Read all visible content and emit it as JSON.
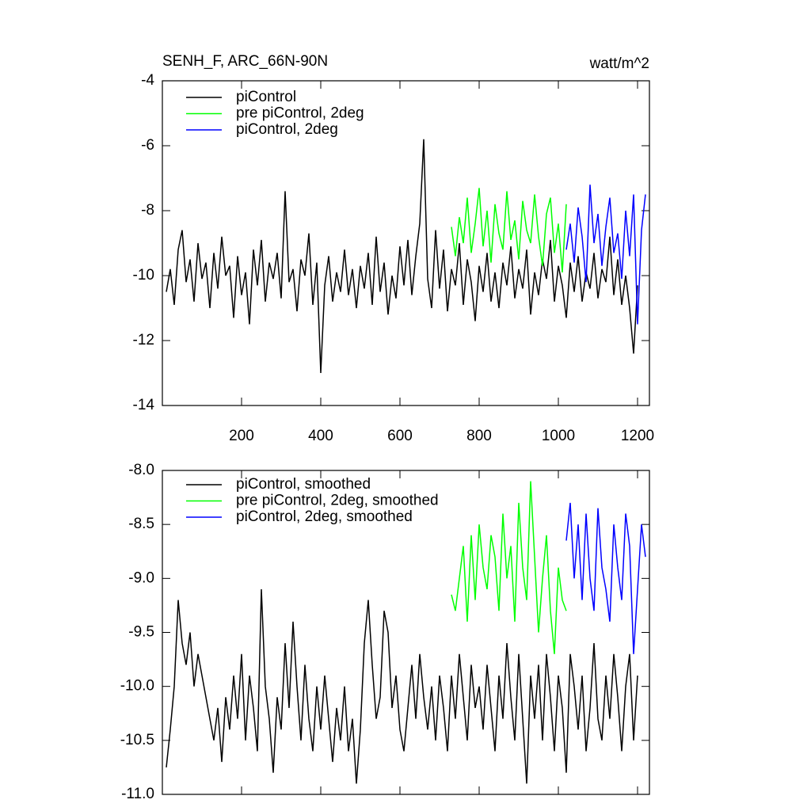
{
  "chart_data": [
    {
      "type": "line",
      "title": "SENH_F, ARC_66N-90N",
      "subtitle": "watt/m^2",
      "xlim": [
        0,
        1230
      ],
      "xticks": [
        200,
        400,
        600,
        800,
        1000,
        1200
      ],
      "ylim": [
        -14,
        -4
      ],
      "yticks": [
        -14,
        -12,
        -10,
        -8,
        -6,
        -4
      ],
      "legend": "top-left",
      "series": [
        {
          "name": "piControl",
          "color": "#000000",
          "x": [
            10,
            20,
            30,
            40,
            50,
            60,
            70,
            80,
            90,
            100,
            110,
            120,
            130,
            140,
            150,
            160,
            170,
            180,
            190,
            200,
            210,
            220,
            230,
            240,
            250,
            260,
            270,
            280,
            290,
            300,
            310,
            320,
            330,
            340,
            350,
            360,
            370,
            380,
            390,
            400,
            410,
            420,
            430,
            440,
            450,
            460,
            470,
            480,
            490,
            500,
            510,
            520,
            530,
            540,
            550,
            560,
            570,
            580,
            590,
            600,
            610,
            620,
            630,
            640,
            650,
            660,
            670,
            680,
            690,
            700,
            710,
            720,
            730,
            740,
            750,
            760,
            770,
            780,
            790,
            800,
            810,
            820,
            830,
            840,
            850,
            860,
            870,
            880,
            890,
            900,
            910,
            920,
            930,
            940,
            950,
            960,
            970,
            980,
            990,
            1000,
            1010,
            1020,
            1030,
            1040,
            1050,
            1060,
            1070,
            1080,
            1090,
            1100,
            1110,
            1120,
            1130,
            1140,
            1150,
            1160,
            1170,
            1180,
            1190,
            1200
          ],
          "values": [
            -10.5,
            -9.8,
            -10.9,
            -9.2,
            -8.6,
            -10.2,
            -9.5,
            -10.8,
            -9.0,
            -10.1,
            -9.6,
            -11.0,
            -9.3,
            -10.4,
            -8.8,
            -10.0,
            -9.7,
            -11.3,
            -9.4,
            -10.6,
            -9.9,
            -11.5,
            -9.2,
            -10.3,
            -8.9,
            -10.8,
            -9.6,
            -10.1,
            -9.3,
            -10.7,
            -7.4,
            -10.2,
            -9.8,
            -11.1,
            -9.5,
            -10.0,
            -8.7,
            -10.9,
            -9.6,
            -13.0,
            -10.3,
            -9.4,
            -10.8,
            -9.9,
            -10.5,
            -9.2,
            -10.6,
            -9.8,
            -11.0,
            -9.7,
            -10.4,
            -9.3,
            -10.9,
            -8.8,
            -10.5,
            -9.6,
            -11.2,
            -10.0,
            -10.7,
            -9.1,
            -10.3,
            -8.9,
            -10.6,
            -9.4,
            -8.4,
            -5.8,
            -10.1,
            -11.0,
            -8.6,
            -10.4,
            -9.2,
            -11.1,
            -9.8,
            -10.3,
            -9.0,
            -10.9,
            -9.5,
            -10.2,
            -11.4,
            -9.7,
            -10.5,
            -9.3,
            -10.8,
            -9.9,
            -11.0,
            -9.6,
            -10.3,
            -9.1,
            -10.7,
            -9.8,
            -10.4,
            -9.2,
            -11.2,
            -9.9,
            -10.6,
            -9.5,
            -10.1,
            -8.9,
            -10.8,
            -9.7,
            -10.3,
            -11.3,
            -9.6,
            -10.5,
            -9.4,
            -10.8,
            -9.9,
            -10.4,
            -9.3,
            -10.7,
            -9.8,
            -10.2,
            -8.8,
            -10.6,
            -9.5,
            -10.9,
            -10.0,
            -11.0,
            -12.4,
            -10.3
          ]
        },
        {
          "name": "pre piControl, 2deg",
          "color": "#00ff00",
          "x": [
            730,
            740,
            750,
            760,
            770,
            780,
            790,
            800,
            810,
            820,
            830,
            840,
            850,
            860,
            870,
            880,
            890,
            900,
            910,
            920,
            930,
            940,
            950,
            960,
            970,
            980,
            990,
            1000,
            1010,
            1020
          ],
          "values": [
            -8.5,
            -9.4,
            -8.2,
            -9.0,
            -7.6,
            -9.3,
            -8.4,
            -7.3,
            -9.1,
            -8.0,
            -9.6,
            -7.8,
            -8.7,
            -9.2,
            -7.4,
            -8.9,
            -8.3,
            -9.5,
            -7.7,
            -8.6,
            -9.0,
            -7.5,
            -8.8,
            -9.7,
            -8.1,
            -7.6,
            -9.3,
            -8.4,
            -9.9,
            -7.8
          ]
        },
        {
          "name": "piControl, 2deg",
          "color": "#0000ff",
          "x": [
            1020,
            1030,
            1040,
            1050,
            1060,
            1070,
            1080,
            1090,
            1100,
            1110,
            1120,
            1130,
            1140,
            1150,
            1160,
            1170,
            1180,
            1190,
            1200,
            1210,
            1220
          ],
          "values": [
            -9.2,
            -8.4,
            -9.6,
            -7.9,
            -8.8,
            -10.2,
            -7.2,
            -9.0,
            -8.1,
            -9.7,
            -8.5,
            -7.6,
            -9.3,
            -8.7,
            -10.1,
            -8.0,
            -9.4,
            -7.5,
            -11.5,
            -8.6,
            -7.5
          ]
        }
      ]
    },
    {
      "type": "line",
      "xlim": [
        0,
        1230
      ],
      "xticks": [
        200,
        400,
        600,
        800,
        1000,
        1200
      ],
      "ylim": [
        -11,
        -8
      ],
      "yticks": [
        {
          "value": -11,
          "label": "-11.0"
        },
        -10.5,
        {
          "value": -10,
          "label": "-10.0"
        },
        -9.5,
        {
          "value": -9,
          "label": "-9.0"
        },
        -8.5,
        {
          "value": -8,
          "label": "-8.0"
        }
      ],
      "legend": "top-left",
      "series": [
        {
          "name": "piControl, smoothed",
          "color": "#000000",
          "x": [
            10,
            20,
            30,
            40,
            50,
            60,
            70,
            80,
            90,
            100,
            110,
            120,
            130,
            140,
            150,
            160,
            170,
            180,
            190,
            200,
            210,
            220,
            230,
            240,
            250,
            260,
            270,
            280,
            290,
            300,
            310,
            320,
            330,
            340,
            350,
            360,
            370,
            380,
            390,
            400,
            410,
            420,
            430,
            440,
            450,
            460,
            470,
            480,
            490,
            500,
            510,
            520,
            530,
            540,
            550,
            560,
            570,
            580,
            590,
            600,
            610,
            620,
            630,
            640,
            650,
            660,
            670,
            680,
            690,
            700,
            710,
            720,
            730,
            740,
            750,
            760,
            770,
            780,
            790,
            800,
            810,
            820,
            830,
            840,
            850,
            860,
            870,
            880,
            890,
            900,
            910,
            920,
            930,
            940,
            950,
            960,
            970,
            980,
            990,
            1000,
            1010,
            1020,
            1030,
            1040,
            1050,
            1060,
            1070,
            1080,
            1090,
            1100,
            1110,
            1120,
            1130,
            1140,
            1150,
            1160,
            1170,
            1180,
            1190,
            1200
          ],
          "values": [
            -10.75,
            -10.4,
            -10.0,
            -9.2,
            -9.6,
            -9.8,
            -9.5,
            -10.0,
            -9.7,
            -9.9,
            -10.1,
            -10.3,
            -10.5,
            -10.2,
            -10.7,
            -10.1,
            -10.4,
            -9.9,
            -10.3,
            -9.7,
            -10.5,
            -9.9,
            -10.2,
            -10.6,
            -9.1,
            -10.0,
            -10.3,
            -10.8,
            -10.1,
            -10.4,
            -9.6,
            -10.2,
            -9.4,
            -10.0,
            -10.5,
            -9.8,
            -10.3,
            -10.6,
            -10.0,
            -10.4,
            -9.9,
            -10.3,
            -10.7,
            -10.2,
            -10.5,
            -10.0,
            -10.6,
            -10.3,
            -10.9,
            -10.4,
            -9.6,
            -9.2,
            -9.8,
            -10.3,
            -10.1,
            -9.3,
            -9.5,
            -10.2,
            -9.9,
            -10.4,
            -10.6,
            -10.2,
            -9.8,
            -10.3,
            -9.7,
            -10.1,
            -10.4,
            -10.0,
            -10.5,
            -9.9,
            -10.2,
            -10.6,
            -9.9,
            -10.3,
            -9.7,
            -10.1,
            -10.5,
            -9.8,
            -10.2,
            -10.0,
            -10.4,
            -9.8,
            -10.2,
            -10.6,
            -9.9,
            -10.3,
            -9.6,
            -10.1,
            -10.5,
            -9.7,
            -10.3,
            -10.9,
            -9.9,
            -10.3,
            -9.8,
            -10.5,
            -9.7,
            -10.1,
            -10.6,
            -9.9,
            -10.2,
            -10.8,
            -9.7,
            -10.0,
            -10.4,
            -9.9,
            -10.6,
            -10.2,
            -9.6,
            -10.3,
            -10.5,
            -9.9,
            -10.3,
            -9.7,
            -10.1,
            -10.6,
            -10.0,
            -9.7,
            -10.5,
            -9.9
          ]
        },
        {
          "name": "pre piControl, 2deg, smoothed",
          "color": "#00ff00",
          "x": [
            730,
            740,
            750,
            760,
            770,
            780,
            790,
            800,
            810,
            820,
            830,
            840,
            850,
            860,
            870,
            880,
            890,
            900,
            910,
            920,
            930,
            940,
            950,
            960,
            970,
            980,
            990,
            1000,
            1010,
            1020
          ],
          "values": [
            -9.15,
            -9.3,
            -9.0,
            -8.7,
            -9.4,
            -8.6,
            -9.2,
            -8.5,
            -8.9,
            -9.1,
            -8.6,
            -8.8,
            -9.3,
            -8.4,
            -9.0,
            -8.7,
            -9.4,
            -8.3,
            -8.9,
            -9.2,
            -8.1,
            -8.8,
            -9.5,
            -9.0,
            -8.6,
            -9.3,
            -9.7,
            -8.9,
            -9.2,
            -9.3
          ]
        },
        {
          "name": "piControl, 2deg, smoothed",
          "color": "#0000ff",
          "x": [
            1020,
            1030,
            1040,
            1050,
            1060,
            1070,
            1080,
            1090,
            1100,
            1110,
            1120,
            1130,
            1140,
            1150,
            1160,
            1170,
            1180,
            1190,
            1200,
            1210,
            1220
          ],
          "values": [
            -8.65,
            -8.3,
            -9.0,
            -8.5,
            -9.2,
            -8.4,
            -9.0,
            -9.3,
            -8.35,
            -8.9,
            -9.1,
            -9.4,
            -8.5,
            -8.9,
            -9.2,
            -8.4,
            -8.7,
            -9.7,
            -9.1,
            -8.5,
            -8.8
          ]
        }
      ]
    }
  ]
}
